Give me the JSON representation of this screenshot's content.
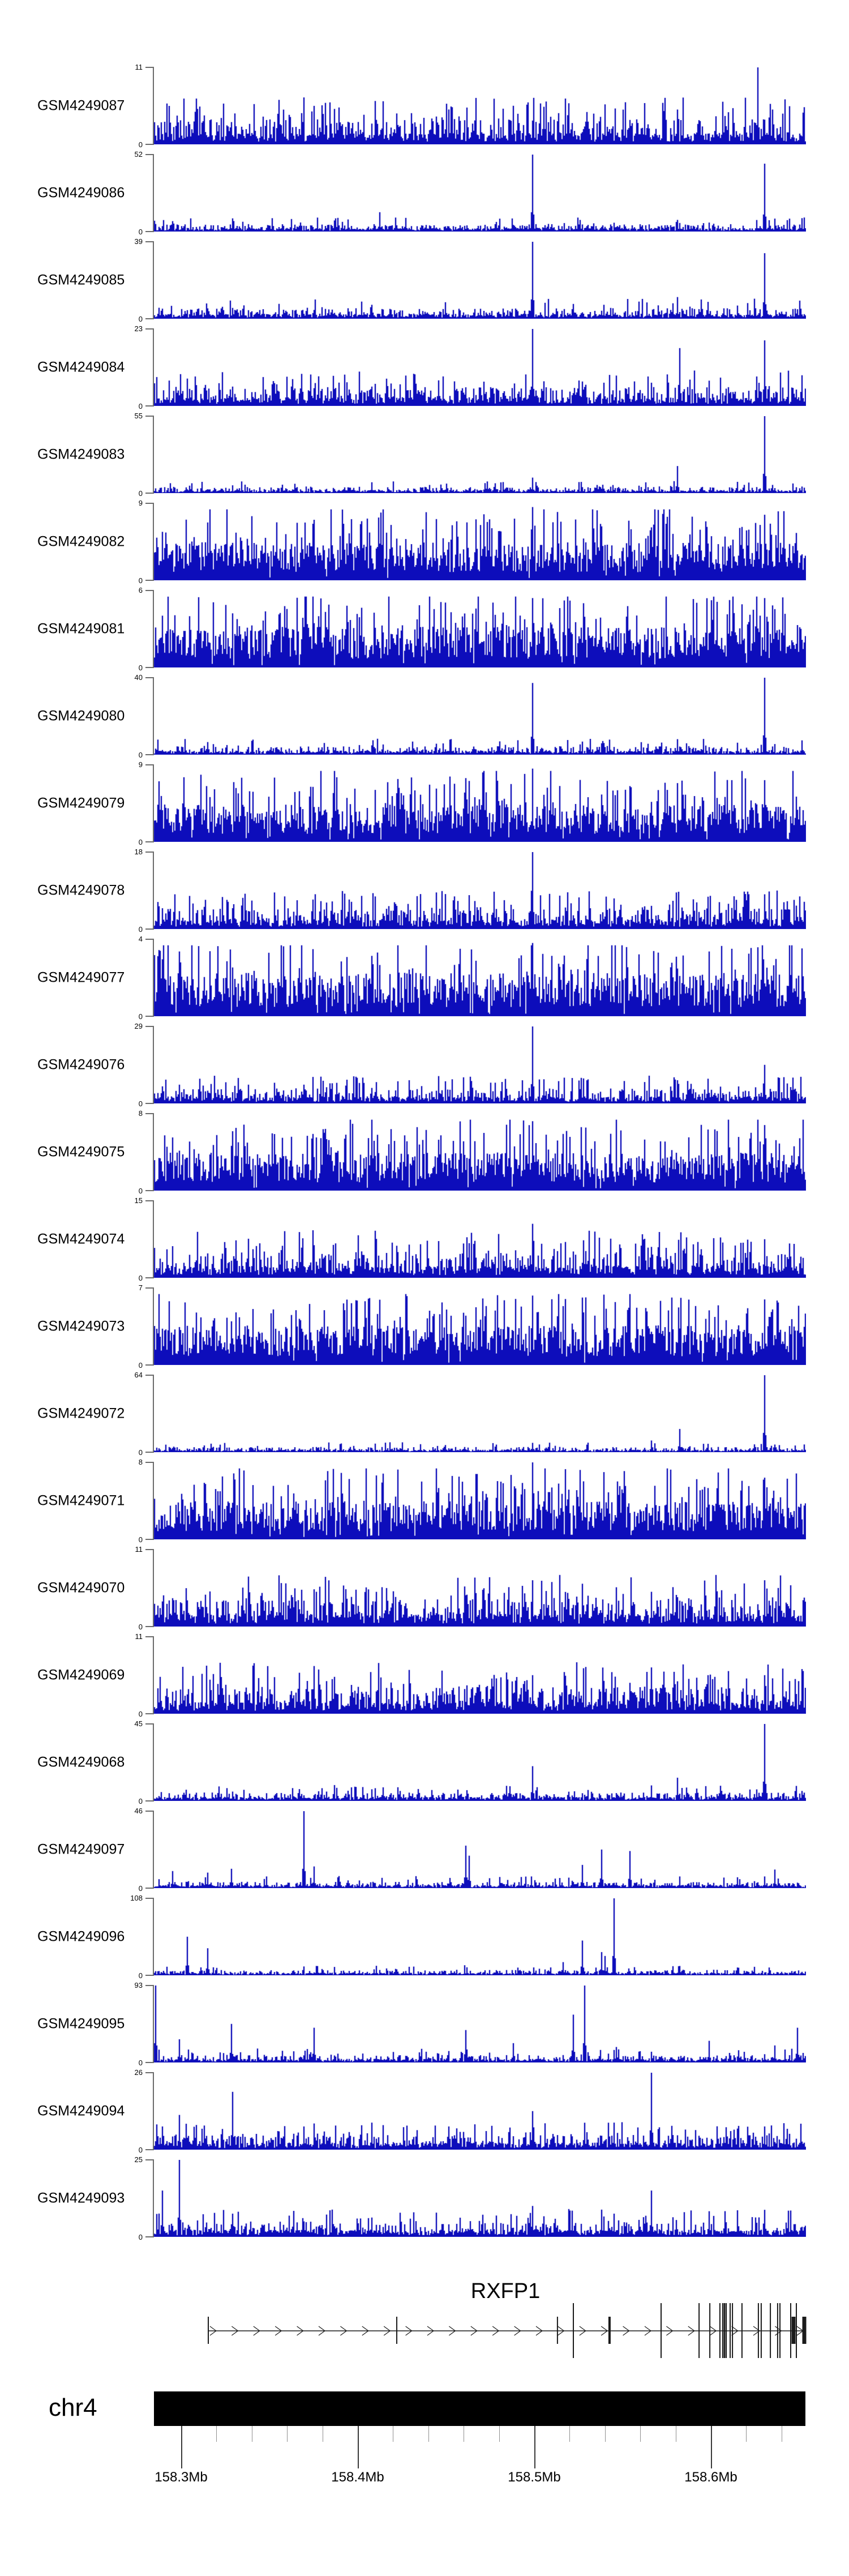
{
  "figure": {
    "kind": "genome coverage tracks over RXFP1 locus",
    "n_tracks": 25
  },
  "colors": {
    "coverage_fill": "#0d0dbb",
    "coverage_edge": "#4646c8",
    "axis_gray": "#6b6b6b",
    "gene_black": "#1a1a1a",
    "ideogram_black": "#000000",
    "text_black": "#000000",
    "ruler_minor": "#909090",
    "ruler_major": "#3a3a3a"
  },
  "chart_data": {
    "type": "area",
    "description": "Stacked per-sample read-coverage histograms (dark blue) along chr4 158.285-158.654 Mb spanning the RXFP1 gene; each track has its own y-axis from 0 to ymax.",
    "x_axis": {
      "unit": "Mb",
      "range_mb": [
        158.285,
        158.654
      ],
      "tick_step_minor_mb": 0.02,
      "last_minor_mb": 158.64
    },
    "tracks": [
      {
        "sample": "GSM4249087",
        "ymax": 11,
        "pattern": "medium",
        "base": 0.12,
        "spike_prob": 0.12,
        "spike_height": 0.45,
        "peaks_mb": [
          [
            158.626,
            1
          ],
          [
            158.488,
            0.5
          ],
          [
            158.358,
            0.45
          ],
          [
            158.422,
            0.4
          ],
          [
            158.55,
            0.45
          ],
          [
            158.33,
            0.4
          ]
        ]
      },
      {
        "sample": "GSM4249086",
        "ymax": 52,
        "pattern": "sparse",
        "base": 0.035,
        "peaks_mb": [
          [
            158.499,
            1
          ],
          [
            158.63,
            0.88
          ],
          [
            158.412,
            0.25
          ],
          [
            158.421,
            0.18
          ],
          [
            158.329,
            0.17
          ],
          [
            158.581,
            0.15
          ],
          [
            158.601,
            0.1
          ]
        ]
      },
      {
        "sample": "GSM4249085",
        "ymax": 39,
        "pattern": "sparse",
        "base": 0.05,
        "peaks_mb": [
          [
            158.499,
            1
          ],
          [
            158.63,
            0.85
          ],
          [
            158.581,
            0.28
          ],
          [
            158.408,
            0.18
          ],
          [
            158.329,
            0.14
          ],
          [
            158.539,
            0.18
          ],
          [
            158.543,
            0.14
          ]
        ]
      },
      {
        "sample": "GSM4249084",
        "ymax": 23,
        "pattern": "medium",
        "base": 0.09,
        "spike_prob": 0.1,
        "spike_height": 0.3,
        "peaks_mb": [
          [
            158.499,
            1
          ],
          [
            158.63,
            0.85
          ],
          [
            158.582,
            0.75
          ],
          [
            158.539,
            0.3
          ],
          [
            158.408,
            0.25
          ],
          [
            158.351,
            0.28
          ],
          [
            158.329,
            0.25
          ],
          [
            158.566,
            0.3
          ]
        ]
      },
      {
        "sample": "GSM4249083",
        "ymax": 55,
        "pattern": "sparse",
        "base": 0.03,
        "peaks_mb": [
          [
            158.63,
            1
          ],
          [
            158.581,
            0.35
          ],
          [
            158.499,
            0.2
          ],
          [
            158.408,
            0.14
          ],
          [
            158.364,
            0.12
          ],
          [
            158.329,
            0.1
          ]
        ]
      },
      {
        "sample": "GSM4249082",
        "ymax": 9,
        "pattern": "dense",
        "base": 0.3,
        "peaks_mb": [
          [
            158.499,
            0.95
          ],
          [
            158.63,
            0.85
          ]
        ]
      },
      {
        "sample": "GSM4249081",
        "ymax": 6,
        "pattern": "dense",
        "base": 0.32,
        "peaks_mb": [
          [
            158.499,
            0.9
          ],
          [
            158.63,
            0.9
          ]
        ]
      },
      {
        "sample": "GSM4249080",
        "ymax": 40,
        "pattern": "sparse",
        "base": 0.04,
        "peaks_mb": [
          [
            158.63,
            1
          ],
          [
            158.499,
            0.93
          ],
          [
            158.581,
            0.2
          ],
          [
            158.539,
            0.15
          ],
          [
            158.408,
            0.12
          ]
        ]
      },
      {
        "sample": "GSM4249079",
        "ymax": 9,
        "pattern": "dense",
        "base": 0.3,
        "peaks_mb": [
          [
            158.499,
            0.95
          ],
          [
            158.63,
            0.8
          ]
        ]
      },
      {
        "sample": "GSM4249078",
        "ymax": 18,
        "pattern": "medium",
        "base": 0.1,
        "spike_prob": 0.12,
        "spike_height": 0.35,
        "peaks_mb": [
          [
            158.499,
            1
          ],
          [
            158.63,
            0.45
          ],
          [
            158.422,
            0.3
          ],
          [
            158.329,
            0.27
          ],
          [
            158.566,
            0.3
          ]
        ]
      },
      {
        "sample": "GSM4249077",
        "ymax": 4,
        "pattern": "dense",
        "base": 0.34,
        "peaks_mb": [
          [
            158.499,
            0.95
          ]
        ]
      },
      {
        "sample": "GSM4249076",
        "ymax": 29,
        "pattern": "medium",
        "base": 0.07,
        "spike_prob": 0.1,
        "spike_height": 0.25,
        "peaks_mb": [
          [
            158.499,
            1
          ],
          [
            158.63,
            0.5
          ],
          [
            158.581,
            0.3
          ],
          [
            158.408,
            0.2
          ]
        ]
      },
      {
        "sample": "GSM4249075",
        "ymax": 8,
        "pattern": "dense",
        "base": 0.3,
        "peaks_mb": [
          [
            158.499,
            0.9
          ],
          [
            158.63,
            0.85
          ]
        ]
      },
      {
        "sample": "GSM4249074",
        "ymax": 15,
        "pattern": "medium",
        "base": 0.12,
        "spike_prob": 0.13,
        "spike_height": 0.38,
        "peaks_mb": [
          [
            158.499,
            0.7
          ],
          [
            158.63,
            0.5
          ],
          [
            158.566,
            0.4
          ]
        ]
      },
      {
        "sample": "GSM4249073",
        "ymax": 7,
        "pattern": "dense",
        "base": 0.31,
        "peaks_mb": [
          [
            158.499,
            0.9
          ],
          [
            158.63,
            0.85
          ]
        ]
      },
      {
        "sample": "GSM4249072",
        "ymax": 64,
        "pattern": "sparse",
        "base": 0.025,
        "peaks_mb": [
          [
            158.63,
            1
          ],
          [
            158.582,
            0.3
          ],
          [
            158.566,
            0.15
          ],
          [
            158.499,
            0.12
          ]
        ]
      },
      {
        "sample": "GSM4249071",
        "ymax": 8,
        "pattern": "dense",
        "base": 0.3,
        "peaks_mb": [
          [
            158.499,
            1
          ],
          [
            158.63,
            0.8
          ]
        ]
      },
      {
        "sample": "GSM4249070",
        "ymax": 11,
        "pattern": "medium",
        "base": 0.13,
        "spike_prob": 0.14,
        "spike_height": 0.4,
        "peaks_mb": [
          [
            158.499,
            0.6
          ],
          [
            158.63,
            0.6
          ],
          [
            158.566,
            0.45
          ]
        ]
      },
      {
        "sample": "GSM4249069",
        "ymax": 11,
        "pattern": "medium",
        "base": 0.13,
        "spike_prob": 0.14,
        "spike_height": 0.4,
        "peaks_mb": [
          [
            158.566,
            0.6
          ],
          [
            158.598,
            0.5
          ],
          [
            158.63,
            0.5
          ],
          [
            158.499,
            0.5
          ]
        ]
      },
      {
        "sample": "GSM4249068",
        "ymax": 45,
        "pattern": "sparse",
        "base": 0.04,
        "peaks_mb": [
          [
            158.63,
            1
          ],
          [
            158.499,
            0.45
          ],
          [
            158.581,
            0.3
          ],
          [
            158.566,
            0.2
          ],
          [
            158.408,
            0.15
          ],
          [
            158.329,
            0.12
          ]
        ]
      },
      {
        "sample": "GSM4249097",
        "ymax": 46,
        "pattern": "sparse",
        "base": 0.03,
        "peaks_mb": [
          [
            158.369,
            1
          ],
          [
            158.461,
            0.55
          ],
          [
            158.463,
            0.42
          ],
          [
            158.538,
            0.5
          ],
          [
            158.554,
            0.48
          ],
          [
            158.527,
            0.3
          ],
          [
            158.375,
            0.28
          ],
          [
            158.328,
            0.25
          ],
          [
            158.295,
            0.22
          ],
          [
            158.315,
            0.2
          ],
          [
            158.348,
            0.15
          ],
          [
            158.498,
            0.15
          ],
          [
            158.582,
            0.15
          ],
          [
            158.636,
            0.24
          ],
          [
            158.63,
            0.15
          ]
        ]
      },
      {
        "sample": "GSM4249096",
        "ymax": 108,
        "pattern": "sparse",
        "base": 0.025,
        "peaks_mb": [
          [
            158.545,
            1
          ],
          [
            158.303,
            0.5
          ],
          [
            158.527,
            0.45
          ],
          [
            158.315,
            0.35
          ],
          [
            158.538,
            0.3
          ],
          [
            158.54,
            0.25
          ],
          [
            158.516,
            0.17
          ],
          [
            158.376,
            0.12
          ],
          [
            158.582,
            0.12
          ],
          [
            158.615,
            0.1
          ],
          [
            158.633,
            0.1
          ]
        ]
      },
      {
        "sample": "GSM4249095",
        "ymax": 93,
        "pattern": "sparse",
        "base": 0.035,
        "peaks_mb": [
          [
            158.285,
            1
          ],
          [
            158.528,
            1
          ],
          [
            158.522,
            0.62
          ],
          [
            158.328,
            0.5
          ],
          [
            158.375,
            0.45
          ],
          [
            158.461,
            0.42
          ],
          [
            158.299,
            0.3
          ],
          [
            158.599,
            0.28
          ],
          [
            158.488,
            0.25
          ],
          [
            158.636,
            0.22
          ],
          [
            158.546,
            0.2
          ],
          [
            158.649,
            0.45
          ]
        ]
      },
      {
        "sample": "GSM4249094",
        "ymax": 26,
        "pattern": "medium",
        "base": 0.07,
        "spike_prob": 0.09,
        "spike_height": 0.25,
        "peaks_mb": [
          [
            158.566,
            1
          ],
          [
            158.329,
            0.75
          ],
          [
            158.499,
            0.5
          ],
          [
            158.299,
            0.45
          ],
          [
            158.545,
            0.35
          ],
          [
            158.408,
            0.35
          ],
          [
            158.63,
            0.3
          ],
          [
            158.289,
            0.3
          ],
          [
            158.369,
            0.3
          ],
          [
            158.451,
            0.3
          ]
        ]
      },
      {
        "sample": "GSM4249093",
        "ymax": 25,
        "pattern": "medium",
        "base": 0.07,
        "spike_prob": 0.09,
        "spike_height": 0.25,
        "peaks_mb": [
          [
            158.299,
            1
          ],
          [
            158.289,
            0.6
          ],
          [
            158.566,
            0.6
          ],
          [
            158.499,
            0.4
          ],
          [
            158.63,
            0.35
          ],
          [
            158.545,
            0.3
          ],
          [
            158.329,
            0.3
          ],
          [
            158.408,
            0.25
          ],
          [
            158.369,
            0.2
          ]
        ]
      }
    ],
    "gene_track": {
      "name": "RXFP1",
      "strand_arrows": "right",
      "span_mb": [
        158.3154,
        158.6538
      ],
      "exons": [
        {
          "mb": 158.3154,
          "size": "short",
          "w": 2
        },
        {
          "mb": 158.4221,
          "size": "short",
          "w": 2
        },
        {
          "mb": 158.5131,
          "size": "short",
          "w": 2
        },
        {
          "mb": 158.5221,
          "size": "tall",
          "w": 2
        },
        {
          "mb": 158.5426,
          "size": "short",
          "w": 4
        },
        {
          "mb": 158.5718,
          "size": "tall",
          "w": 2
        },
        {
          "mb": 158.5933,
          "size": "tall",
          "w": 2
        },
        {
          "mb": 158.5994,
          "size": "tall",
          "w": 2
        },
        {
          "mb": 158.6051,
          "size": "tall",
          "w": 2
        },
        {
          "mb": 158.6067,
          "size": "tall",
          "w": 2
        },
        {
          "mb": 158.6077,
          "size": "tall",
          "w": 3
        },
        {
          "mb": 158.6087,
          "size": "tall",
          "w": 2
        },
        {
          "mb": 158.6109,
          "size": "tall",
          "w": 2
        },
        {
          "mb": 158.6122,
          "size": "tall",
          "w": 2
        },
        {
          "mb": 158.6176,
          "size": "tall",
          "w": 2
        },
        {
          "mb": 158.6269,
          "size": "tall",
          "w": 2
        },
        {
          "mb": 158.6285,
          "size": "tall",
          "w": 2
        },
        {
          "mb": 158.6337,
          "size": "tall",
          "w": 2
        },
        {
          "mb": 158.6378,
          "size": "tall",
          "w": 2
        },
        {
          "mb": 158.6391,
          "size": "tall",
          "w": 2
        },
        {
          "mb": 158.6452,
          "size": "tall",
          "w": 2
        },
        {
          "mb": 158.6468,
          "size": "short",
          "w": 7
        },
        {
          "mb": 158.6484,
          "size": "tall",
          "w": 2
        },
        {
          "mb": 158.6529,
          "size": "short",
          "w": 7
        }
      ]
    },
    "ideogram": {
      "chromosome": "chr4",
      "bar_span_mb": [
        158.2846,
        158.6535
      ],
      "major_ticks": [
        {
          "mb": 158.3,
          "label": "158.3Mb"
        },
        {
          "mb": 158.4,
          "label": "158.4Mb"
        },
        {
          "mb": 158.5,
          "label": "158.5Mb"
        },
        {
          "mb": 158.6,
          "label": "158.6Mb"
        }
      ]
    }
  }
}
